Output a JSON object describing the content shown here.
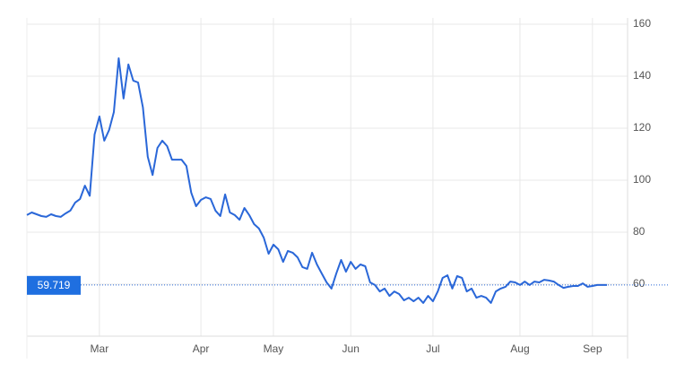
{
  "chart_data": {
    "type": "line",
    "categories": [
      null,
      null,
      null,
      null,
      null,
      null,
      null,
      null,
      null,
      null,
      null,
      null,
      null,
      null,
      null,
      "Mar",
      null,
      null,
      null,
      null,
      null,
      null,
      null,
      null,
      null,
      null,
      null,
      null,
      null,
      null,
      null,
      null,
      null,
      null,
      null,
      null,
      "Apr",
      null,
      null,
      null,
      null,
      null,
      null,
      null,
      null,
      null,
      null,
      null,
      null,
      null,
      null,
      "May",
      null,
      null,
      null,
      null,
      null,
      null,
      null,
      null,
      null,
      null,
      null,
      null,
      null,
      null,
      null,
      "Jun",
      null,
      null,
      null,
      null,
      null,
      null,
      null,
      null,
      null,
      null,
      null,
      null,
      null,
      null,
      null,
      null,
      "Jul",
      null,
      null,
      null,
      null,
      null,
      null,
      null,
      null,
      null,
      null,
      null,
      null,
      null,
      null,
      null,
      null,
      null,
      "Aug",
      null,
      null,
      null,
      null,
      null,
      null,
      null,
      null,
      null,
      null,
      null,
      null,
      null,
      null,
      "Sep",
      null,
      null,
      null
    ],
    "series": [
      {
        "color": "#2a67d8",
        "values": [
          86.6,
          87.6,
          86.9,
          86.2,
          85.9,
          86.9,
          86.2,
          85.9,
          87.2,
          88.3,
          91.4,
          92.8,
          97.9,
          94.0,
          117.6,
          124.5,
          115.2,
          119.3,
          126.2,
          146.9,
          131.4,
          144.5,
          138.3,
          137.6,
          128.0,
          109.0,
          102.0,
          112.4,
          115.2,
          113.1,
          107.9,
          107.9,
          107.9,
          105.5,
          95.2,
          90.0,
          92.4,
          93.4,
          92.8,
          88.3,
          86.2,
          94.5,
          87.6,
          86.6,
          84.8,
          89.3,
          86.6,
          83.1,
          81.4,
          77.9,
          71.7,
          75.2,
          73.4,
          68.6,
          72.8,
          72.1,
          70.3,
          66.6,
          65.9,
          72.1,
          67.6,
          64.1,
          60.7,
          58.3,
          64.1,
          69.3,
          64.8,
          68.6,
          65.9,
          67.6,
          66.9,
          60.7,
          59.7,
          57.2,
          58.3,
          55.5,
          57.2,
          56.2,
          53.8,
          54.8,
          53.4,
          54.8,
          52.8,
          55.5,
          53.4,
          57.2,
          62.4,
          63.4,
          58.3,
          63.1,
          62.4,
          57.2,
          58.3,
          54.8,
          55.5,
          54.8,
          52.8,
          57.2,
          58.3,
          59.0,
          61.0,
          60.7,
          59.7,
          61.0,
          59.7,
          61.0,
          60.7,
          61.7,
          61.4,
          61.0,
          59.7,
          58.6,
          59.0,
          59.3,
          59.3,
          60.3,
          59.0,
          59.3,
          59.7,
          59.7,
          59.7
        ]
      }
    ],
    "current_value": 59.719,
    "ylim": [
      40,
      160
    ],
    "yticks": [
      60,
      80,
      100,
      120,
      140,
      160
    ],
    "grid": true
  }
}
